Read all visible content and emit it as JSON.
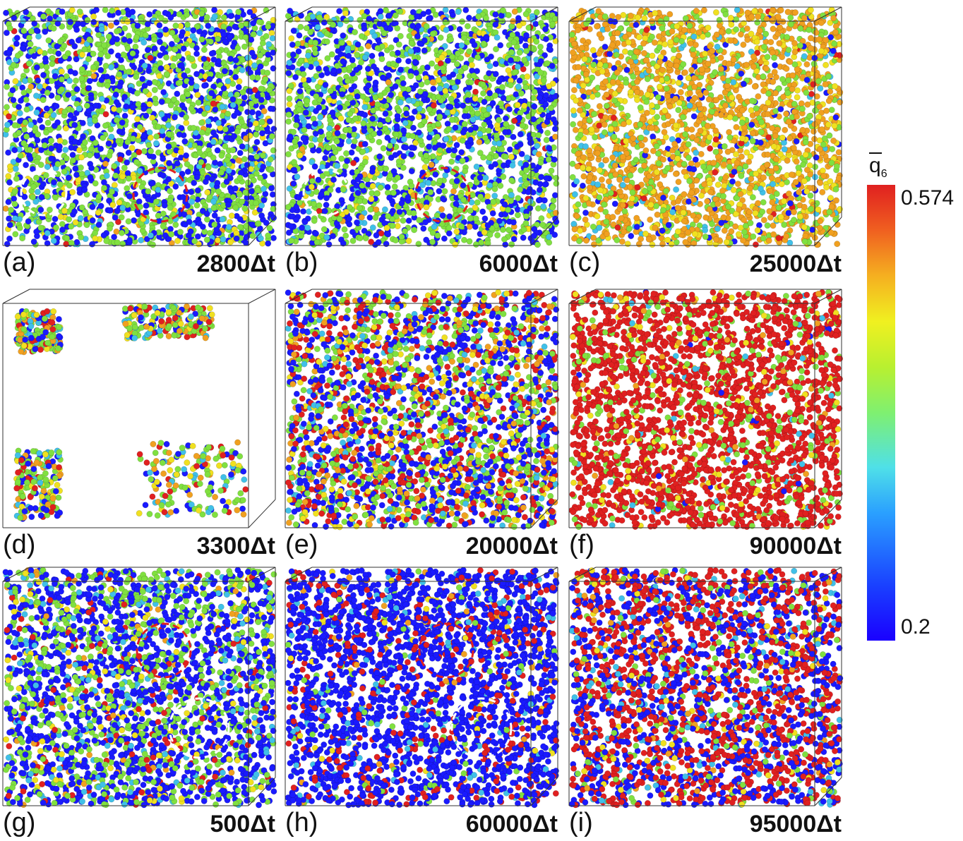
{
  "panels": [
    {
      "letter": "(a)",
      "time": "2800Δt",
      "mix": [
        0.38,
        0.1,
        0.42,
        0.07,
        0.02,
        0.01
      ],
      "circles": [
        "white",
        "red"
      ],
      "box": "full"
    },
    {
      "letter": "(b)",
      "time": "6000Δt",
      "mix": [
        0.36,
        0.1,
        0.44,
        0.07,
        0.02,
        0.01
      ],
      "circles": [
        "white",
        "red"
      ],
      "box": "full"
    },
    {
      "letter": "(c)",
      "time": "25000Δt",
      "mix": [
        0.05,
        0.05,
        0.22,
        0.18,
        0.48,
        0.02
      ],
      "circles": [],
      "box": "full"
    },
    {
      "letter": "(d)",
      "time": "3300Δt",
      "mix": [
        0.2,
        0.08,
        0.35,
        0.12,
        0.15,
        0.1
      ],
      "circles": [],
      "box": "clusters"
    },
    {
      "letter": "(e)",
      "time": "20000Δt",
      "mix": [
        0.33,
        0.06,
        0.22,
        0.1,
        0.09,
        0.2
      ],
      "circles": [],
      "box": "full"
    },
    {
      "letter": "(f)",
      "time": "90000Δt",
      "mix": [
        0.01,
        0.02,
        0.13,
        0.06,
        0.03,
        0.75
      ],
      "circles": [],
      "box": "full"
    },
    {
      "letter": "(g)",
      "time": "500Δt",
      "mix": [
        0.5,
        0.08,
        0.28,
        0.06,
        0.02,
        0.06
      ],
      "circles": [
        "red",
        "white"
      ],
      "box": "full"
    },
    {
      "letter": "(h)",
      "time": "60000Δt",
      "mix": [
        0.72,
        0.05,
        0.04,
        0.02,
        0.02,
        0.15
      ],
      "circles": [
        "red",
        "white"
      ],
      "box": "full"
    },
    {
      "letter": "(i)",
      "time": "95000Δt",
      "mix": [
        0.35,
        0.05,
        0.06,
        0.04,
        0.02,
        0.48
      ],
      "circles": [],
      "box": "full"
    }
  ],
  "palette": [
    "#1a1aff",
    "#40c0e8",
    "#80e040",
    "#f0e020",
    "#f0a020",
    "#e02020"
  ],
  "colorbar": {
    "symbol": "q",
    "subscript": "6",
    "max_label": "0.574",
    "min_label": "0.2"
  }
}
